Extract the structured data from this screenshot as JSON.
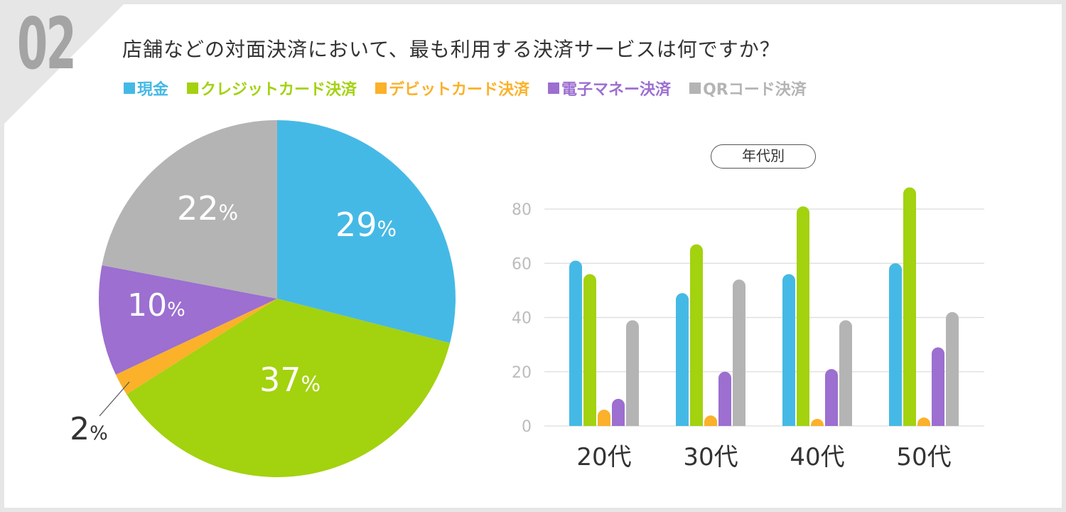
{
  "badge": "02",
  "question": "店舗などの対面決済において、最も利用する決済サービスは何ですか？",
  "colors": {
    "cash": "#45b9e5",
    "credit": "#a3d20f",
    "debit": "#fbb12a",
    "emoney": "#9c6fd0",
    "qr": "#b4b4b4"
  },
  "legend": [
    {
      "label": "現金",
      "color": "#45b9e5"
    },
    {
      "label": "クレジットカード決済",
      "color": "#a3d20f"
    },
    {
      "label": "デビットカード決済",
      "color": "#fbb12a"
    },
    {
      "label": "電子マネー決済",
      "color": "#9c6fd0"
    },
    {
      "label": "QRコード決済",
      "color": "#b4b4b4"
    }
  ],
  "group_label": "年代別",
  "chart_data": [
    {
      "type": "pie",
      "title": "店舗などの対面決済において、最も利用する決済サービスは何ですか？",
      "slices": [
        {
          "name": "現金",
          "value": 29,
          "label": "29",
          "color": "#45b9e5"
        },
        {
          "name": "クレジットカード決済",
          "value": 37,
          "label": "37",
          "color": "#a3d20f"
        },
        {
          "name": "デビットカード決済",
          "value": 2,
          "label": "2",
          "color": "#fbb12a"
        },
        {
          "name": "電子マネー決済",
          "value": 10,
          "label": "10",
          "color": "#9c6fd0"
        },
        {
          "name": "QRコード決済",
          "value": 22,
          "label": "22",
          "color": "#b4b4b4"
        }
      ],
      "unit": "%"
    },
    {
      "type": "bar",
      "title": "年代別",
      "categories": [
        "20代",
        "30代",
        "40代",
        "50代"
      ],
      "series": [
        {
          "name": "現金",
          "color": "#45b9e5",
          "values": [
            61,
            49,
            56,
            60
          ]
        },
        {
          "name": "クレジットカード決済",
          "color": "#a3d20f",
          "values": [
            56,
            67,
            81,
            88
          ]
        },
        {
          "name": "デビットカード決済",
          "color": "#fbb12a",
          "values": [
            6,
            3,
            0.5,
            1.5
          ]
        },
        {
          "name": "電子マネー決済",
          "color": "#9c6fd0",
          "values": [
            10,
            20,
            21,
            29
          ]
        },
        {
          "name": "QRコード決済",
          "color": "#b4b4b4",
          "values": [
            39,
            54,
            39,
            42
          ]
        }
      ],
      "yticks": [
        0,
        20,
        40,
        60,
        80
      ],
      "ylim": [
        0,
        90
      ],
      "grid": true
    }
  ]
}
